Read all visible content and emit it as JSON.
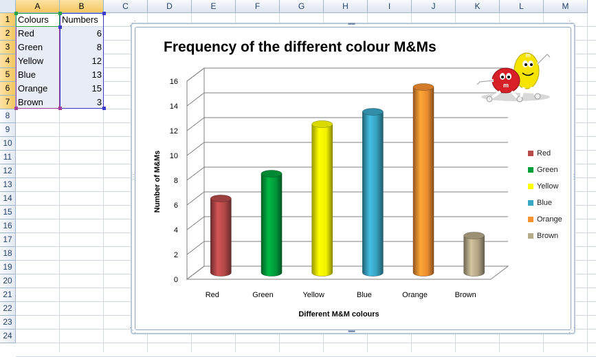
{
  "spreadsheet": {
    "column_headers": [
      "A",
      "B",
      "C",
      "D",
      "E",
      "F",
      "G",
      "H",
      "I",
      "J",
      "K",
      "L",
      "M"
    ],
    "row_headers": [
      "1",
      "2",
      "3",
      "4",
      "5",
      "6",
      "7",
      "8",
      "9",
      "10",
      "11",
      "12",
      "13",
      "14",
      "15",
      "16",
      "17",
      "18",
      "19",
      "20",
      "21",
      "22",
      "23",
      "24"
    ],
    "header_row": {
      "col_a": "Colours",
      "col_b": "Numbers"
    },
    "rows": [
      {
        "colour": "Red",
        "number": "6"
      },
      {
        "colour": "Green",
        "number": "8"
      },
      {
        "colour": "Yellow",
        "number": "12"
      },
      {
        "colour": "Blue",
        "number": "13"
      },
      {
        "colour": "Orange",
        "number": "15"
      },
      {
        "colour": "Brown",
        "number": "3"
      }
    ]
  },
  "chart_data": {
    "type": "bar",
    "title": "Frequency of the different colour M&Ms",
    "xlabel": "Different M&M  colours",
    "ylabel": "Number of M&Ms",
    "categories": [
      "Red",
      "Green",
      "Yellow",
      "Blue",
      "Orange",
      "Brown"
    ],
    "values": [
      6,
      8,
      12,
      13,
      15,
      3
    ],
    "colors": [
      "#b84a4a",
      "#00a03c",
      "#ffff00",
      "#3aa6c6",
      "#f59131",
      "#b8ab8a"
    ],
    "ylim": [
      0,
      16
    ],
    "yticks": [
      "0",
      "2",
      "4",
      "6",
      "8",
      "10",
      "12",
      "14",
      "16"
    ],
    "grid": true,
    "legend_position": "right",
    "legend": [
      "Red",
      "Green",
      "Yellow",
      "Blue",
      "Orange",
      "Brown"
    ]
  },
  "chart_image": {
    "icon": "mms-characters-icon"
  }
}
